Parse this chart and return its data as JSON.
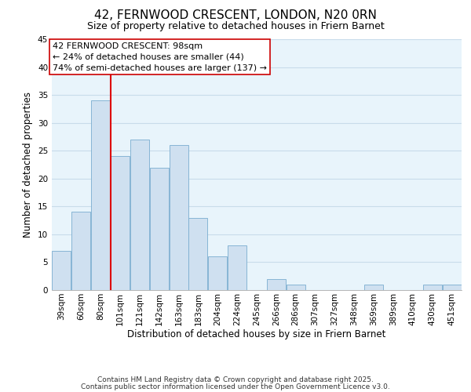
{
  "title": "42, FERNWOOD CRESCENT, LONDON, N20 0RN",
  "subtitle": "Size of property relative to detached houses in Friern Barnet",
  "xlabel": "Distribution of detached houses by size in Friern Barnet",
  "ylabel": "Number of detached properties",
  "bin_labels": [
    "39sqm",
    "60sqm",
    "80sqm",
    "101sqm",
    "121sqm",
    "142sqm",
    "163sqm",
    "183sqm",
    "204sqm",
    "224sqm",
    "245sqm",
    "266sqm",
    "286sqm",
    "307sqm",
    "327sqm",
    "348sqm",
    "369sqm",
    "389sqm",
    "410sqm",
    "430sqm",
    "451sqm"
  ],
  "bar_heights": [
    7,
    14,
    34,
    24,
    27,
    22,
    26,
    13,
    6,
    8,
    0,
    2,
    1,
    0,
    0,
    0,
    1,
    0,
    0,
    1,
    1
  ],
  "bar_color": "#cfe0f0",
  "bar_edge_color": "#7aadcf",
  "vline_x_index": 2,
  "vline_color": "#dd0000",
  "annotation_text": "42 FERNWOOD CRESCENT: 98sqm\n← 24% of detached houses are smaller (44)\n74% of semi-detached houses are larger (137) →",
  "annotation_box_color": "#ffffff",
  "annotation_box_edge": "#cc0000",
  "ylim": [
    0,
    45
  ],
  "yticks": [
    0,
    5,
    10,
    15,
    20,
    25,
    30,
    35,
    40,
    45
  ],
  "grid_color": "#c8dcea",
  "background_color": "#e8f4fb",
  "footer_line1": "Contains HM Land Registry data © Crown copyright and database right 2025.",
  "footer_line2": "Contains public sector information licensed under the Open Government Licence v3.0.",
  "title_fontsize": 11,
  "subtitle_fontsize": 9,
  "axis_label_fontsize": 8.5,
  "tick_fontsize": 7.5,
  "annotation_fontsize": 8,
  "footer_fontsize": 6.5
}
